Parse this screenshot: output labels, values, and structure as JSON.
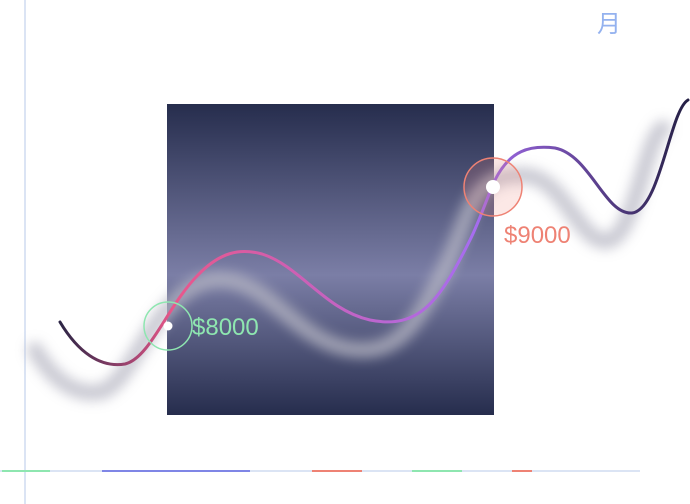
{
  "unit_label": "月",
  "colors": {
    "axis": "#dbe4f4",
    "unit": "#94b2ef",
    "panel_edge": "#262d4d",
    "panel_mid": "#7b7ea6",
    "line_start": "#2c2545",
    "line_mid": "#e9578a",
    "line_peak": "#a66df0",
    "line_end": "#241f44",
    "low_marker": "#8ee6b0",
    "high_marker": "#ee8274",
    "shadow": "#b8b8c4",
    "legend": [
      "#8ee6b0",
      "#7f86e6",
      "#ee8274",
      "#8ee6b0",
      "#ee8274"
    ]
  },
  "chart_data": {
    "type": "line",
    "title": "",
    "xlabel": "",
    "ylabel": "",
    "grid": false,
    "annotations": [
      {
        "label": "$8000",
        "value": 8000,
        "kind": "low"
      },
      {
        "label": "$9000",
        "value": 9000,
        "kind": "high"
      }
    ]
  }
}
